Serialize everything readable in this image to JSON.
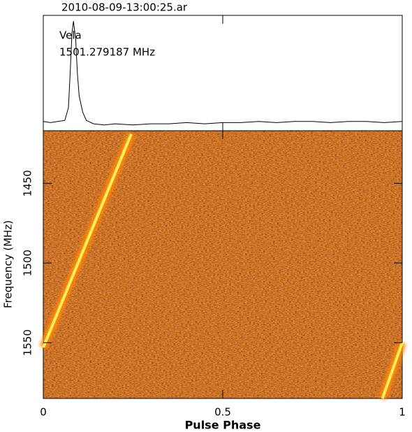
{
  "chart_data": [
    {
      "type": "line",
      "title": "2010-08-09-13:00:25.ar",
      "annotations": [
        "Vela",
        "1501.279187 MHz"
      ],
      "x": [
        0,
        0.02,
        0.04,
        0.06,
        0.07,
        0.075,
        0.08,
        0.084,
        0.09,
        0.095,
        0.1,
        0.11,
        0.12,
        0.14,
        0.17,
        0.2,
        0.25,
        0.3,
        0.35,
        0.4,
        0.45,
        0.5,
        0.55,
        0.6,
        0.65,
        0.7,
        0.75,
        0.8,
        0.85,
        0.9,
        0.95,
        1.0
      ],
      "values": [
        0.08,
        0.07,
        0.08,
        0.09,
        0.2,
        0.5,
        0.85,
        0.95,
        0.8,
        0.5,
        0.3,
        0.16,
        0.09,
        0.06,
        0.05,
        0.06,
        0.05,
        0.06,
        0.06,
        0.07,
        0.06,
        0.07,
        0.07,
        0.08,
        0.07,
        0.08,
        0.08,
        0.07,
        0.08,
        0.08,
        0.07,
        0.08
      ],
      "color": "#000000",
      "xlim": [
        0,
        1
      ],
      "ylim": [
        0,
        1
      ]
    },
    {
      "type": "line",
      "x_label": "Pulse Phase",
      "y_label": "Frequency (MHz)",
      "x": [
        0.245,
        0.0,
        null,
        1.0,
        0.945
      ],
      "values": [
        1419,
        1553,
        null,
        1550,
        1585
      ],
      "color": "#ffee55",
      "xlim": [
        0,
        1
      ],
      "xticks": [
        0,
        0.5,
        1
      ],
      "ylim": [
        1585,
        1417
      ],
      "yticks": [
        1450,
        1500,
        1550
      ]
    }
  ]
}
